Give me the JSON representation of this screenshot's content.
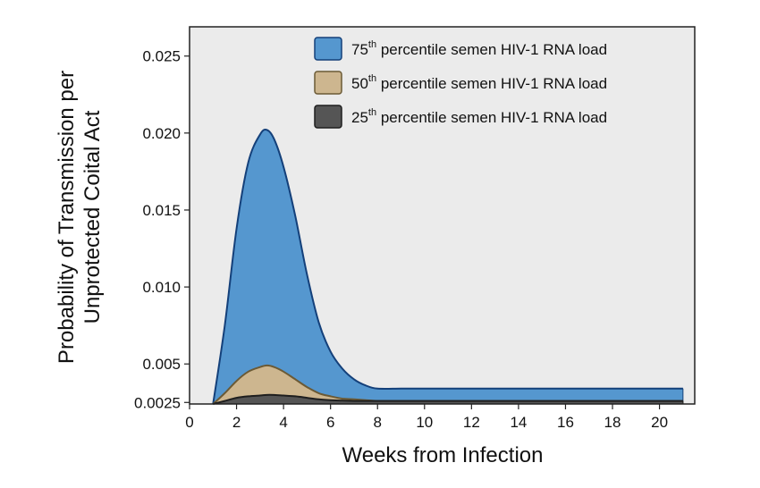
{
  "chart_data": {
    "type": "area",
    "xlabel": "Weeks from Infection",
    "ylabel_line1": "Probability of Transmission per",
    "ylabel_line2": "Unprotected Coital Act",
    "xlim": [
      0,
      21.5
    ],
    "ylim": [
      0.0024,
      0.0269
    ],
    "xticks": [
      "0",
      "2",
      "4",
      "6",
      "8",
      "10",
      "12",
      "14",
      "16",
      "18",
      "20"
    ],
    "yticks": [
      "0.0025",
      "0.005",
      "0.010",
      "0.015",
      "0.020",
      "0.025"
    ],
    "legend_position": "top-right",
    "grid": false,
    "colors": {
      "plot_background": "#ebebeb",
      "axis": "#222222"
    },
    "series": [
      {
        "legend_number": "75",
        "legend_sup": "th",
        "legend_text": " percentile semen HIV-1 RNA load",
        "fill": "#5597cf",
        "stroke": "#14407a",
        "x": [
          1,
          1.5,
          2,
          2.5,
          3,
          3.3,
          3.6,
          4,
          4.5,
          5,
          5.5,
          6,
          6.5,
          7,
          7.5,
          8,
          9,
          10,
          12,
          14,
          16,
          18,
          20,
          21
        ],
        "y": [
          0.0024,
          0.0075,
          0.0138,
          0.0181,
          0.0199,
          0.0202,
          0.0196,
          0.0178,
          0.0146,
          0.0108,
          0.0077,
          0.0058,
          0.0047,
          0.004,
          0.0036,
          0.0034,
          0.0034,
          0.0034,
          0.0034,
          0.0034,
          0.0034,
          0.0034,
          0.0034,
          0.0034
        ]
      },
      {
        "legend_number": "50",
        "legend_sup": "th",
        "legend_text": " percentile semen HIV-1 RNA load",
        "fill": "#cdb68f",
        "stroke": "#6b5a35",
        "x": [
          1,
          1.5,
          2,
          2.5,
          3,
          3.3,
          3.6,
          4,
          4.5,
          5,
          5.5,
          6,
          6.5,
          7,
          7.5,
          8,
          9,
          10,
          12,
          14,
          16,
          18,
          20,
          21
        ],
        "y": [
          0.0024,
          0.0031,
          0.0039,
          0.0045,
          0.0048,
          0.0049,
          0.0048,
          0.0045,
          0.004,
          0.0035,
          0.0031,
          0.0029,
          0.00275,
          0.0027,
          0.00265,
          0.0026,
          0.0026,
          0.0026,
          0.0026,
          0.0026,
          0.0026,
          0.0026,
          0.0026,
          0.0026
        ]
      },
      {
        "legend_number": "25",
        "legend_sup": "th",
        "legend_text": " percentile semen HIV-1 RNA load",
        "fill": "#555555",
        "stroke": "#1e1e1e",
        "x": [
          1,
          1.5,
          2,
          2.5,
          3,
          3.4,
          4,
          4.5,
          5,
          5.5,
          6,
          7,
          8,
          10,
          12,
          14,
          16,
          18,
          20,
          21
        ],
        "y": [
          0.0024,
          0.0026,
          0.0028,
          0.0029,
          0.00295,
          0.003,
          0.00295,
          0.0029,
          0.0028,
          0.0027,
          0.00265,
          0.0026,
          0.0026,
          0.0026,
          0.0026,
          0.0026,
          0.0026,
          0.0026,
          0.0026,
          0.0026
        ]
      }
    ]
  }
}
